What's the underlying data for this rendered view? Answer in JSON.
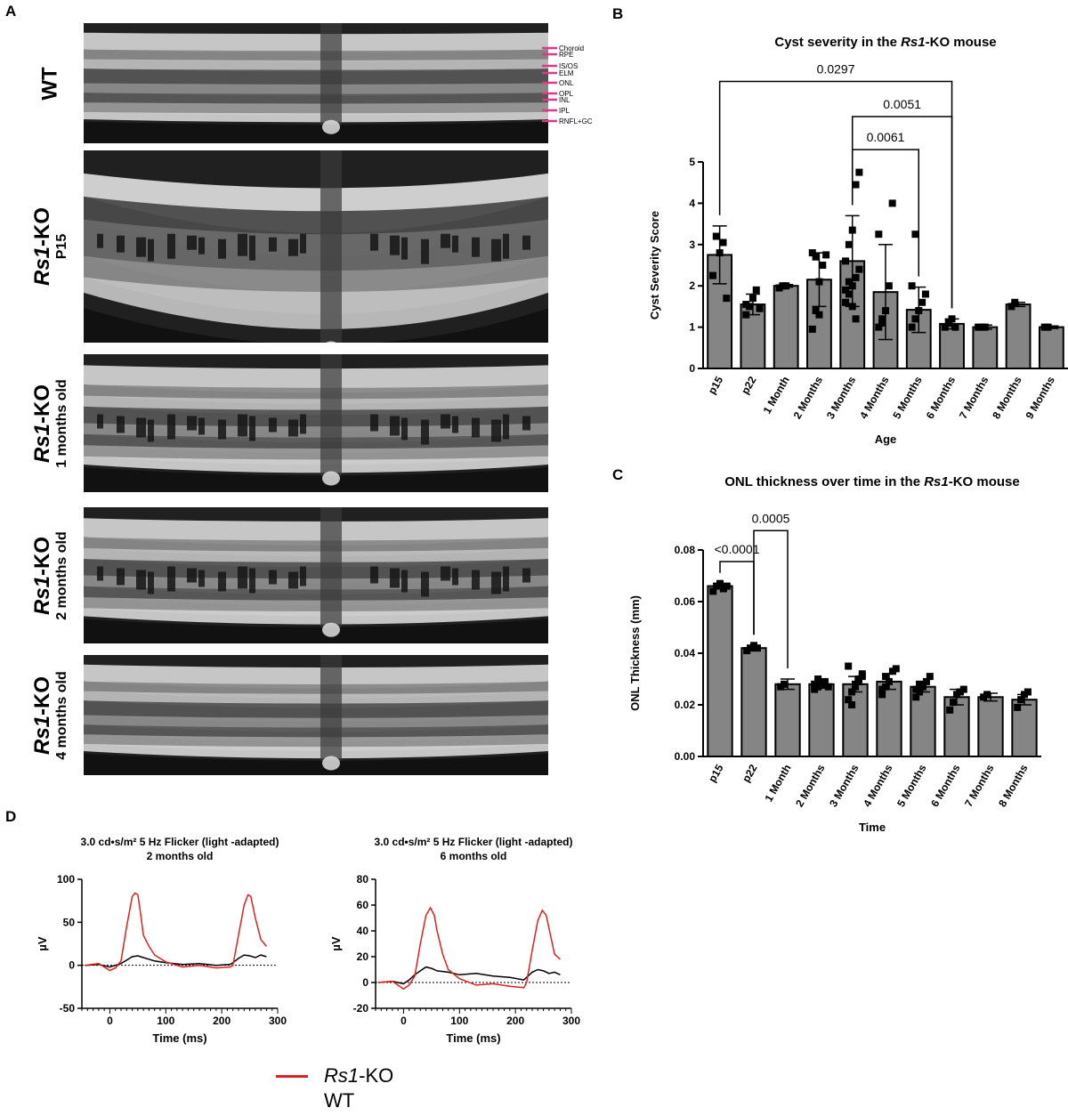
{
  "panels": {
    "a": "A",
    "b": "B",
    "c": "C",
    "d": "D"
  },
  "oct": {
    "rows": [
      {
        "line1": "WT",
        "line2": ""
      },
      {
        "line1": "Rs1-KO",
        "line2": "P15"
      },
      {
        "line1": "Rs1-KO",
        "line2": "1 months old"
      },
      {
        "line1": "Rs1-KO",
        "line2": "2 months old"
      },
      {
        "line1": "Rs1-KO",
        "line2": "4 months old"
      }
    ],
    "layers": [
      "Choroid",
      "RPE",
      "IS/OS",
      "ELM",
      "ONL",
      "OPL",
      "INL",
      "IPL",
      "RNFL+GC"
    ],
    "layer_marker_color": "#e8338c"
  },
  "chart_b": {
    "title": "Cyst severity in the Rs1-KO mouse",
    "xlabel": "Age",
    "ylabel": "Cyst Severity Score",
    "brackets": [
      "0.0297",
      "0.0051",
      "0.0061"
    ]
  },
  "chart_c": {
    "title": "ONL thickness over time in the Rs1-KO mouse",
    "xlabel": "Time",
    "ylabel": "ONL Thickness (mm)",
    "brackets": [
      "<0.0001",
      "0.0005"
    ]
  },
  "erg": [
    {
      "title1": "3.0 cd•s/m² 5 Hz Flicker (light -adapted)",
      "title2": "2 months old",
      "xlabel": "Time (ms)",
      "ylabel": "µV"
    },
    {
      "title1": "3.0 cd•s/m² 5 Hz Flicker (light -adapted)",
      "title2": "6 months old",
      "xlabel": "Time (ms)",
      "ylabel": "µV"
    }
  ],
  "legend": {
    "ko_label": "Rs1-KO",
    "wt_label": "WT",
    "ko_color": "#e0201b",
    "wt_color": "#000000"
  },
  "chart_data": [
    {
      "type": "bar",
      "title": "Cyst severity in the Rs1-KO mouse",
      "xlabel": "Age",
      "ylabel": "Cyst Severity Score",
      "ylim": [
        0,
        5
      ],
      "yticks": [
        0,
        1,
        2,
        3,
        4,
        5
      ],
      "categories": [
        "p15",
        "p22",
        "1 Month",
        "2 Months",
        "3 Months",
        "4 Months",
        "5 Months",
        "6 Months",
        "7 Months",
        "8 Months",
        "9 Months"
      ],
      "values": [
        2.75,
        1.55,
        2.0,
        2.15,
        2.6,
        1.85,
        1.42,
        1.08,
        1.0,
        1.55,
        1.0
      ],
      "error": [
        0.7,
        0.25,
        0.03,
        0.65,
        1.1,
        1.15,
        0.55,
        0.12,
        0.05,
        0.05,
        0.03
      ],
      "points": [
        [
          2.25,
          3.2,
          2.8,
          3.05,
          1.7
        ],
        [
          1.3,
          1.5,
          1.7,
          1.9,
          1.45,
          1.55
        ],
        [
          1.95,
          2.0,
          2.0
        ],
        [
          0.95,
          1.4,
          2.1,
          2.5,
          2.75,
          2.8,
          2.7,
          1.3
        ],
        [
          1.6,
          1.8,
          2.0,
          2.2,
          2.4,
          2.6,
          3.0,
          3.35,
          4.45,
          4.75,
          1.9,
          2.1,
          1.5,
          1.2
        ],
        [
          1.0,
          1.2,
          1.4,
          2.0,
          4.0,
          3.25,
          1.1
        ],
        [
          1.0,
          1.2,
          1.4,
          1.6,
          1.8,
          2.0,
          3.25
        ],
        [
          1.0,
          1.1,
          1.2,
          1.0
        ],
        [
          1.0,
          1.0,
          1.0
        ],
        [
          1.5,
          1.6
        ],
        [
          1.0,
          1.0
        ]
      ],
      "brackets": [
        {
          "from": 0,
          "to": 7,
          "label": "0.0297",
          "y": 6.95
        },
        {
          "from": 4,
          "to": 7,
          "label": "0.0051",
          "y": 6.1
        },
        {
          "from": 4,
          "to": 6,
          "label": "0.0061",
          "y": 5.3
        }
      ]
    },
    {
      "type": "bar",
      "title": "ONL thickness over time in the Rs1-KO mouse",
      "xlabel": "Time",
      "ylabel": "ONL Thickness (mm)",
      "ylim": [
        0,
        0.08
      ],
      "yticks": [
        0.0,
        0.02,
        0.04,
        0.06,
        0.08
      ],
      "categories": [
        "p15",
        "p22",
        "1 Month",
        "2 Months",
        "3 Months",
        "4 Months",
        "5 Months",
        "6 Months",
        "7 Months",
        "8 Months"
      ],
      "values": [
        0.066,
        0.042,
        0.028,
        0.028,
        0.028,
        0.029,
        0.027,
        0.023,
        0.023,
        0.022
      ],
      "error": [
        0.001,
        0.001,
        0.002,
        0.0015,
        0.003,
        0.003,
        0.002,
        0.003,
        0.0015,
        0.002
      ],
      "points": [
        [
          0.064,
          0.066,
          0.067,
          0.065,
          0.066
        ],
        [
          0.041,
          0.042,
          0.043,
          0.042
        ],
        [
          0.027,
          0.028
        ],
        [
          0.026,
          0.027,
          0.028,
          0.029,
          0.027,
          0.028,
          0.03
        ],
        [
          0.022,
          0.025,
          0.028,
          0.03,
          0.032,
          0.035,
          0.02,
          0.027,
          0.029,
          0.031
        ],
        [
          0.024,
          0.027,
          0.029,
          0.033,
          0.034,
          0.026,
          0.031
        ],
        [
          0.023,
          0.025,
          0.027,
          0.029,
          0.031,
          0.026,
          0.028
        ],
        [
          0.018,
          0.021,
          0.024,
          0.025,
          0.026
        ],
        [
          0.023,
          0.024
        ],
        [
          0.019,
          0.022,
          0.024,
          0.025
        ]
      ],
      "brackets": [
        {
          "from": 0,
          "to": 1,
          "label": "<0.0001",
          "y": 0.0755
        },
        {
          "from": 1,
          "to": 2,
          "label": "0.0005",
          "y": 0.0875
        }
      ]
    },
    {
      "type": "line",
      "title": "3.0 cd•s/m² 5 Hz Flicker (light -adapted) 2 months old",
      "xlabel": "Time (ms)",
      "ylabel": "µV",
      "xlim": [
        -50,
        300
      ],
      "ylim": [
        -50,
        100
      ],
      "xticks": [
        0,
        100,
        200,
        300
      ],
      "yticks": [
        -50,
        0,
        50,
        100
      ],
      "series": [
        {
          "name": "Rs1-KO",
          "x": [
            -45,
            -20,
            0,
            10,
            20,
            30,
            40,
            45,
            50,
            55,
            60,
            70,
            80,
            100,
            130,
            160,
            190,
            215,
            220,
            230,
            240,
            247,
            252,
            260,
            270,
            280
          ],
          "y": [
            0,
            2,
            -6,
            -3,
            5,
            45,
            80,
            84,
            82,
            60,
            35,
            22,
            12,
            4,
            -2,
            0,
            -3,
            -2,
            0,
            35,
            70,
            82,
            80,
            55,
            30,
            22
          ]
        },
        {
          "name": "WT",
          "x": [
            -45,
            -20,
            0,
            10,
            20,
            30,
            40,
            50,
            60,
            80,
            100,
            130,
            160,
            190,
            215,
            220,
            230,
            240,
            250,
            260,
            270,
            280
          ],
          "y": [
            0,
            1,
            -2,
            0,
            2,
            6,
            10,
            11,
            9,
            5,
            3,
            1,
            2,
            0,
            1,
            3,
            8,
            12,
            11,
            9,
            12,
            10
          ]
        }
      ]
    },
    {
      "type": "line",
      "title": "3.0 cd•s/m² 5 Hz Flicker (light -adapted) 6 months old",
      "xlabel": "Time (ms)",
      "ylabel": "µV",
      "xlim": [
        -50,
        300
      ],
      "ylim": [
        -20,
        80
      ],
      "xticks": [
        0,
        100,
        200,
        300
      ],
      "yticks": [
        -20,
        0,
        20,
        40,
        60,
        80
      ],
      "series": [
        {
          "name": "Rs1-KO",
          "x": [
            -45,
            -20,
            0,
            10,
            20,
            30,
            40,
            48,
            55,
            60,
            70,
            80,
            100,
            130,
            160,
            190,
            215,
            220,
            230,
            240,
            248,
            255,
            262,
            270,
            280
          ],
          "y": [
            0,
            1,
            -5,
            -2,
            5,
            30,
            52,
            58,
            52,
            40,
            22,
            10,
            3,
            -2,
            -1,
            -3,
            -4,
            0,
            25,
            48,
            56,
            52,
            38,
            22,
            18
          ]
        },
        {
          "name": "WT",
          "x": [
            -45,
            -20,
            0,
            10,
            20,
            30,
            40,
            50,
            60,
            80,
            100,
            130,
            160,
            190,
            215,
            220,
            230,
            240,
            250,
            260,
            270,
            280
          ],
          "y": [
            0,
            1,
            -1,
            2,
            6,
            9,
            12,
            11,
            9,
            8,
            6,
            7,
            5,
            4,
            2,
            4,
            8,
            10,
            9,
            7,
            8,
            6
          ]
        }
      ]
    }
  ]
}
